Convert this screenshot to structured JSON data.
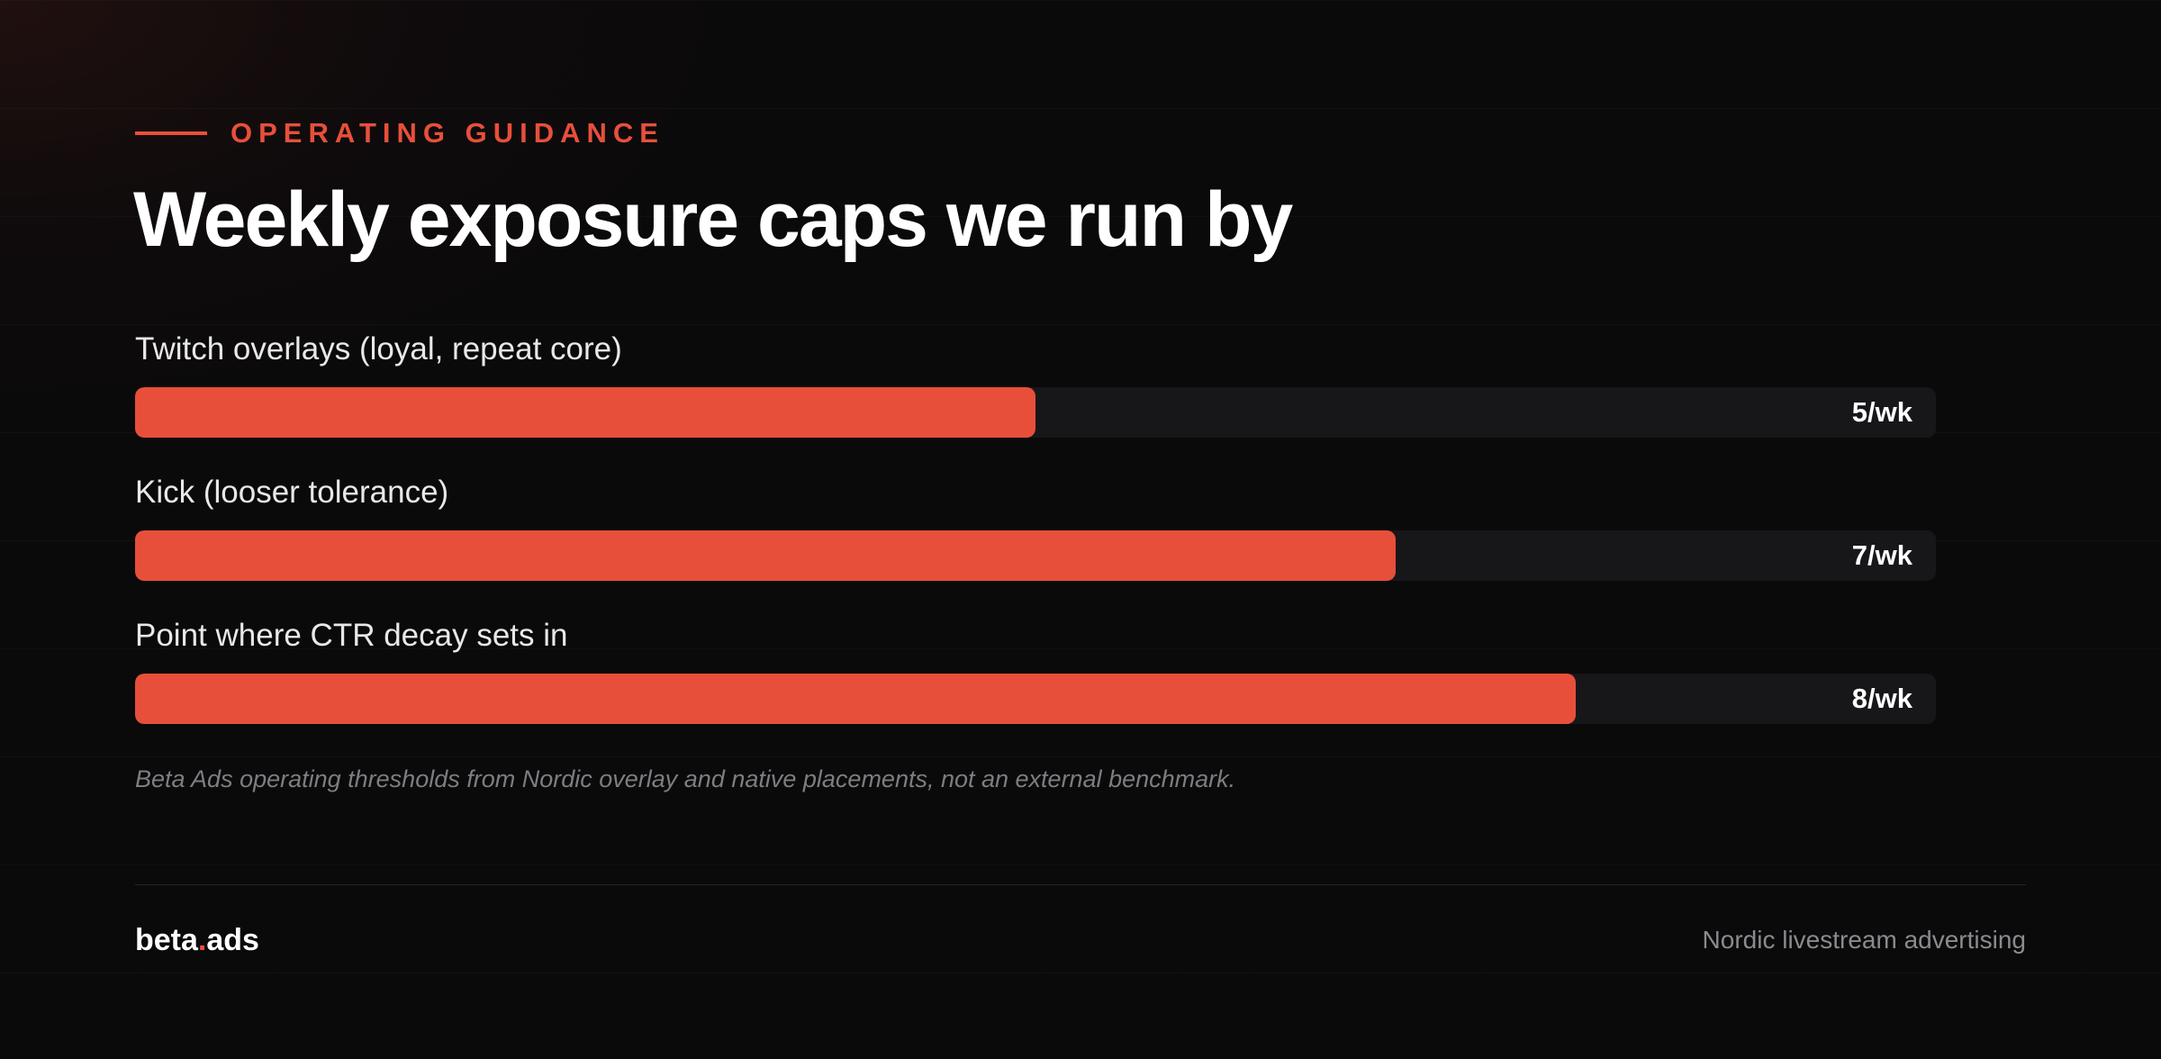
{
  "eyebrow": "OPERATING GUIDANCE",
  "title": "Weekly exposure caps we run by",
  "colors": {
    "accent": "#e84f3b",
    "background": "#0a0a0b",
    "track": "#17171a"
  },
  "chart_data": {
    "type": "bar",
    "orientation": "horizontal",
    "categories": [
      "Twitch overlays (loyal, repeat core)",
      "Kick (looser tolerance)",
      "Point where CTR decay sets in"
    ],
    "values": [
      5,
      7,
      8
    ],
    "value_labels": [
      "5/wk",
      "7/wk",
      "8/wk"
    ],
    "xlim": [
      0,
      10
    ],
    "grid": false,
    "legend": "none"
  },
  "footnote": "Beta Ads operating thresholds from Nordic overlay and native placements, not an external benchmark.",
  "footer": {
    "brand_part1": "beta",
    "brand_dot": ".",
    "brand_part2": "ads",
    "tagline": "Nordic livestream advertising"
  }
}
